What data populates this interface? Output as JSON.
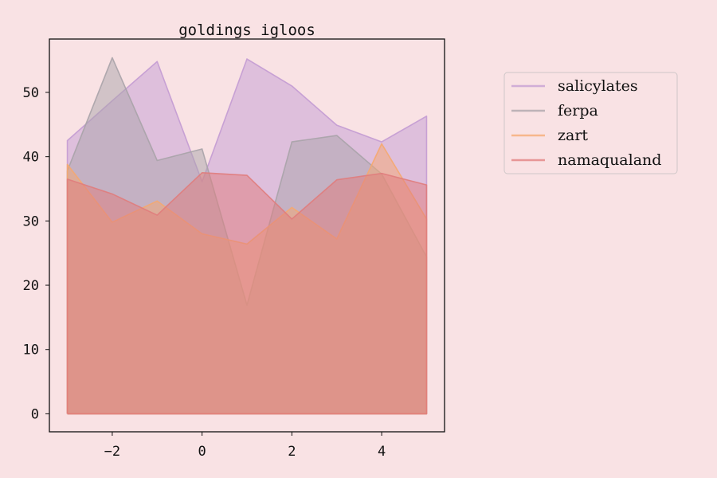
{
  "chart_data": {
    "type": "area",
    "title": "goldings igloos",
    "xlabel": "",
    "ylabel": "",
    "x": [
      -3,
      -2,
      -1,
      0,
      1,
      2,
      3,
      4,
      5
    ],
    "xlim": [
      -3.4,
      5.4
    ],
    "ylim": [
      -2.8,
      58.3
    ],
    "xticks": [
      -2,
      0,
      2,
      4
    ],
    "xtick_labels": [
      "−2",
      "0",
      "2",
      "4"
    ],
    "yticks": [
      0,
      10,
      20,
      30,
      40,
      50
    ],
    "ytick_labels": [
      "0",
      "10",
      "20",
      "30",
      "40",
      "50"
    ],
    "grid": false,
    "legend_position": "outside-top-right",
    "series": [
      {
        "name": "salicylates",
        "color": "#c39bd3",
        "values": [
          42.5,
          48.7,
          54.8,
          36.1,
          55.2,
          51.0,
          44.9,
          42.3,
          46.3
        ]
      },
      {
        "name": "ferpa",
        "color": "#a9a3a9",
        "values": [
          37.8,
          55.4,
          39.4,
          41.2,
          16.9,
          42.3,
          43.3,
          37.3,
          24.4
        ]
      },
      {
        "name": "zart",
        "color": "#f5a86f",
        "values": [
          38.8,
          29.8,
          33.1,
          28.0,
          26.4,
          32.1,
          27.2,
          42.0,
          30.3
        ]
      },
      {
        "name": "namaqualand",
        "color": "#e07c7c",
        "values": [
          36.5,
          34.2,
          30.9,
          37.5,
          37.1,
          30.3,
          36.4,
          37.4,
          35.6
        ]
      }
    ]
  }
}
